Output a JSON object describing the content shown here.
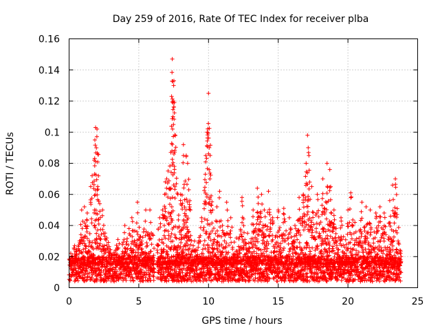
{
  "chart_data": {
    "type": "scatter",
    "title": "Day 259 of 2016, Rate Of TEC Index for receiver plba",
    "xlabel": "GPS time / hours",
    "ylabel": "ROTI / TECUs",
    "xlim": [
      0,
      25
    ],
    "ylim": [
      0,
      0.16
    ],
    "x_ticks": [
      0,
      5,
      10,
      15,
      20,
      25
    ],
    "x_tick_labels": [
      "0",
      "5",
      "10",
      "15",
      "20",
      "25"
    ],
    "y_ticks": [
      0,
      0.02,
      0.04,
      0.06,
      0.08,
      0.1,
      0.12,
      0.14,
      0.16
    ],
    "y_tick_labels": [
      "0",
      "0.02",
      "0.04",
      "0.06",
      "0.08",
      "0.1",
      "0.12",
      "0.14",
      "0.16"
    ],
    "grid": true,
    "marker": "+",
    "color": "#ff0000",
    "data_gap_hours": [
      6.1,
      6.3
    ],
    "series": [
      {
        "name": "ROTI",
        "peaks": [
          {
            "x": 0.4,
            "y": 0.027
          },
          {
            "x": 0.9,
            "y": 0.05
          },
          {
            "x": 1.1,
            "y": 0.052
          },
          {
            "x": 1.3,
            "y": 0.048
          },
          {
            "x": 1.55,
            "y": 0.065
          },
          {
            "x": 1.65,
            "y": 0.072
          },
          {
            "x": 1.8,
            "y": 0.082
          },
          {
            "x": 1.85,
            "y": 0.095
          },
          {
            "x": 1.9,
            "y": 0.103
          },
          {
            "x": 2.0,
            "y": 0.102
          },
          {
            "x": 2.05,
            "y": 0.065
          },
          {
            "x": 2.2,
            "y": 0.054
          },
          {
            "x": 2.4,
            "y": 0.05
          },
          {
            "x": 2.7,
            "y": 0.032
          },
          {
            "x": 3.0,
            "y": 0.022
          },
          {
            "x": 3.5,
            "y": 0.031
          },
          {
            "x": 4.0,
            "y": 0.04
          },
          {
            "x": 4.3,
            "y": 0.038
          },
          {
            "x": 4.5,
            "y": 0.045
          },
          {
            "x": 4.9,
            "y": 0.055
          },
          {
            "x": 5.2,
            "y": 0.03
          },
          {
            "x": 5.5,
            "y": 0.05
          },
          {
            "x": 5.8,
            "y": 0.05
          },
          {
            "x": 6.5,
            "y": 0.045
          },
          {
            "x": 6.7,
            "y": 0.05
          },
          {
            "x": 6.9,
            "y": 0.068
          },
          {
            "x": 7.0,
            "y": 0.07
          },
          {
            "x": 7.1,
            "y": 0.075
          },
          {
            "x": 7.3,
            "y": 0.087
          },
          {
            "x": 7.4,
            "y": 0.092
          },
          {
            "x": 7.42,
            "y": 0.102
          },
          {
            "x": 7.45,
            "y": 0.11
          },
          {
            "x": 7.48,
            "y": 0.12
          },
          {
            "x": 7.5,
            "y": 0.13
          },
          {
            "x": 7.52,
            "y": 0.133
          },
          {
            "x": 7.4,
            "y": 0.147
          },
          {
            "x": 7.8,
            "y": 0.06
          },
          {
            "x": 8.0,
            "y": 0.06
          },
          {
            "x": 8.2,
            "y": 0.092
          },
          {
            "x": 8.4,
            "y": 0.085
          },
          {
            "x": 8.5,
            "y": 0.08
          },
          {
            "x": 9.0,
            "y": 0.03
          },
          {
            "x": 9.5,
            "y": 0.045
          },
          {
            "x": 9.8,
            "y": 0.085
          },
          {
            "x": 9.9,
            "y": 0.1
          },
          {
            "x": 10.0,
            "y": 0.125
          },
          {
            "x": 10.05,
            "y": 0.09
          },
          {
            "x": 10.1,
            "y": 0.07
          },
          {
            "x": 10.3,
            "y": 0.05
          },
          {
            "x": 10.6,
            "y": 0.052
          },
          {
            "x": 10.8,
            "y": 0.062
          },
          {
            "x": 11.0,
            "y": 0.04
          },
          {
            "x": 11.3,
            "y": 0.055
          },
          {
            "x": 11.6,
            "y": 0.045
          },
          {
            "x": 12.0,
            "y": 0.032
          },
          {
            "x": 12.4,
            "y": 0.058
          },
          {
            "x": 12.8,
            "y": 0.035
          },
          {
            "x": 13.2,
            "y": 0.05
          },
          {
            "x": 13.5,
            "y": 0.064
          },
          {
            "x": 13.8,
            "y": 0.06
          },
          {
            "x": 14.0,
            "y": 0.05
          },
          {
            "x": 14.3,
            "y": 0.062
          },
          {
            "x": 14.6,
            "y": 0.045
          },
          {
            "x": 15.0,
            "y": 0.05
          },
          {
            "x": 15.4,
            "y": 0.051
          },
          {
            "x": 15.8,
            "y": 0.045
          },
          {
            "x": 16.2,
            "y": 0.04
          },
          {
            "x": 16.5,
            "y": 0.058
          },
          {
            "x": 16.8,
            "y": 0.06
          },
          {
            "x": 17.0,
            "y": 0.08
          },
          {
            "x": 17.1,
            "y": 0.098
          },
          {
            "x": 17.15,
            "y": 0.09
          },
          {
            "x": 17.2,
            "y": 0.085
          },
          {
            "x": 17.4,
            "y": 0.065
          },
          {
            "x": 17.8,
            "y": 0.06
          },
          {
            "x": 18.2,
            "y": 0.07
          },
          {
            "x": 18.5,
            "y": 0.08
          },
          {
            "x": 18.7,
            "y": 0.076
          },
          {
            "x": 19.0,
            "y": 0.05
          },
          {
            "x": 19.5,
            "y": 0.045
          },
          {
            "x": 20.0,
            "y": 0.05
          },
          {
            "x": 20.2,
            "y": 0.061
          },
          {
            "x": 20.5,
            "y": 0.042
          },
          {
            "x": 21.0,
            "y": 0.055
          },
          {
            "x": 21.3,
            "y": 0.052
          },
          {
            "x": 21.6,
            "y": 0.05
          },
          {
            "x": 22.0,
            "y": 0.048
          },
          {
            "x": 22.3,
            "y": 0.052
          },
          {
            "x": 22.6,
            "y": 0.048
          },
          {
            "x": 23.0,
            "y": 0.056
          },
          {
            "x": 23.2,
            "y": 0.066
          },
          {
            "x": 23.4,
            "y": 0.07
          },
          {
            "x": 23.6,
            "y": 0.03
          }
        ]
      }
    ]
  }
}
